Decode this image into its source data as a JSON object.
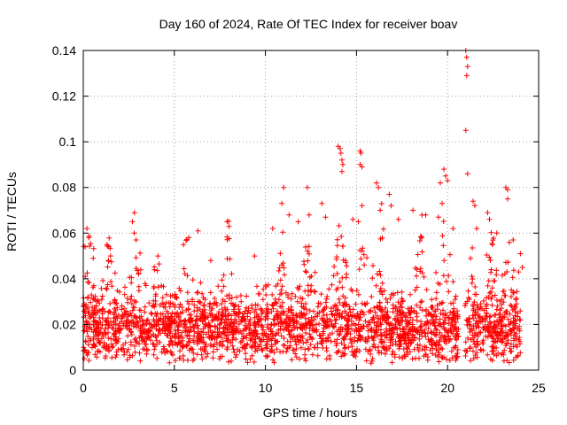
{
  "chart_data": {
    "type": "scatter",
    "title": "Day 160 of 2024, Rate Of TEC Index for receiver boav",
    "xlabel": "GPS time / hours",
    "ylabel": "ROTI / TECUs",
    "xlim": [
      0,
      25
    ],
    "ylim": [
      0,
      0.14
    ],
    "x_ticks": [
      "0",
      "5",
      "10",
      "15",
      "20",
      "25"
    ],
    "y_ticks": [
      "0",
      "0.02",
      "0.04",
      "0.06",
      "0.08",
      "0.1",
      "0.12",
      "0.14"
    ],
    "x_tick_values": [
      0,
      5,
      10,
      15,
      20,
      25
    ],
    "y_tick_values": [
      0,
      0.02,
      0.04,
      0.06,
      0.08,
      0.1,
      0.12,
      0.14
    ],
    "grid": true,
    "marker": "+",
    "color": "#ff0000",
    "series": [
      {
        "name": "ROTI",
        "base_level": 0.018,
        "spread": 0.014,
        "approx_point_count": 2600,
        "outliers": [
          {
            "x": 0.2,
            "y": 0.062
          },
          {
            "x": 0.3,
            "y": 0.058
          },
          {
            "x": 0.1,
            "y": 0.054
          },
          {
            "x": 1.3,
            "y": 0.055
          },
          {
            "x": 1.5,
            "y": 0.05
          },
          {
            "x": 2.7,
            "y": 0.065
          },
          {
            "x": 2.8,
            "y": 0.06
          },
          {
            "x": 2.9,
            "y": 0.057
          },
          {
            "x": 4.1,
            "y": 0.05
          },
          {
            "x": 5.5,
            "y": 0.055
          },
          {
            "x": 5.8,
            "y": 0.058
          },
          {
            "x": 6.3,
            "y": 0.061
          },
          {
            "x": 7.0,
            "y": 0.048
          },
          {
            "x": 7.9,
            "y": 0.065
          },
          {
            "x": 8.0,
            "y": 0.063
          },
          {
            "x": 9.4,
            "y": 0.05
          },
          {
            "x": 10.4,
            "y": 0.062
          },
          {
            "x": 10.9,
            "y": 0.073
          },
          {
            "x": 11.0,
            "y": 0.08
          },
          {
            "x": 11.3,
            "y": 0.068
          },
          {
            "x": 11.8,
            "y": 0.065
          },
          {
            "x": 12.3,
            "y": 0.08
          },
          {
            "x": 12.4,
            "y": 0.068
          },
          {
            "x": 13.1,
            "y": 0.073
          },
          {
            "x": 13.3,
            "y": 0.067
          },
          {
            "x": 14.0,
            "y": 0.098
          },
          {
            "x": 14.1,
            "y": 0.097
          },
          {
            "x": 14.15,
            "y": 0.095
          },
          {
            "x": 14.2,
            "y": 0.092
          },
          {
            "x": 14.25,
            "y": 0.09
          },
          {
            "x": 14.2,
            "y": 0.087
          },
          {
            "x": 14.8,
            "y": 0.066
          },
          {
            "x": 15.2,
            "y": 0.096
          },
          {
            "x": 15.25,
            "y": 0.095
          },
          {
            "x": 15.2,
            "y": 0.09
          },
          {
            "x": 15.3,
            "y": 0.089
          },
          {
            "x": 15.3,
            "y": 0.072
          },
          {
            "x": 15.1,
            "y": 0.065
          },
          {
            "x": 16.1,
            "y": 0.082
          },
          {
            "x": 16.2,
            "y": 0.08
          },
          {
            "x": 16.3,
            "y": 0.07
          },
          {
            "x": 16.8,
            "y": 0.077
          },
          {
            "x": 16.9,
            "y": 0.072
          },
          {
            "x": 17.3,
            "y": 0.066
          },
          {
            "x": 18.1,
            "y": 0.07
          },
          {
            "x": 18.8,
            "y": 0.068
          },
          {
            "x": 19.6,
            "y": 0.082
          },
          {
            "x": 19.7,
            "y": 0.073
          },
          {
            "x": 19.8,
            "y": 0.088
          },
          {
            "x": 19.9,
            "y": 0.085
          },
          {
            "x": 20.0,
            "y": 0.083
          },
          {
            "x": 19.5,
            "y": 0.067
          },
          {
            "x": 20.3,
            "y": 0.062
          },
          {
            "x": 21.0,
            "y": 0.14
          },
          {
            "x": 21.05,
            "y": 0.137
          },
          {
            "x": 21.1,
            "y": 0.133
          },
          {
            "x": 21.05,
            "y": 0.129
          },
          {
            "x": 21.0,
            "y": 0.105
          },
          {
            "x": 21.1,
            "y": 0.086
          },
          {
            "x": 21.4,
            "y": 0.074
          },
          {
            "x": 21.5,
            "y": 0.072
          },
          {
            "x": 21.6,
            "y": 0.062
          },
          {
            "x": 22.2,
            "y": 0.069
          },
          {
            "x": 22.3,
            "y": 0.066
          },
          {
            "x": 22.7,
            "y": 0.06
          },
          {
            "x": 23.2,
            "y": 0.08
          },
          {
            "x": 23.3,
            "y": 0.079
          },
          {
            "x": 23.3,
            "y": 0.075
          },
          {
            "x": 23.6,
            "y": 0.057
          },
          {
            "x": 24.0,
            "y": 0.051
          },
          {
            "x": 23.9,
            "y": 0.043
          },
          {
            "x": 24.1,
            "y": 0.045
          }
        ]
      }
    ]
  }
}
